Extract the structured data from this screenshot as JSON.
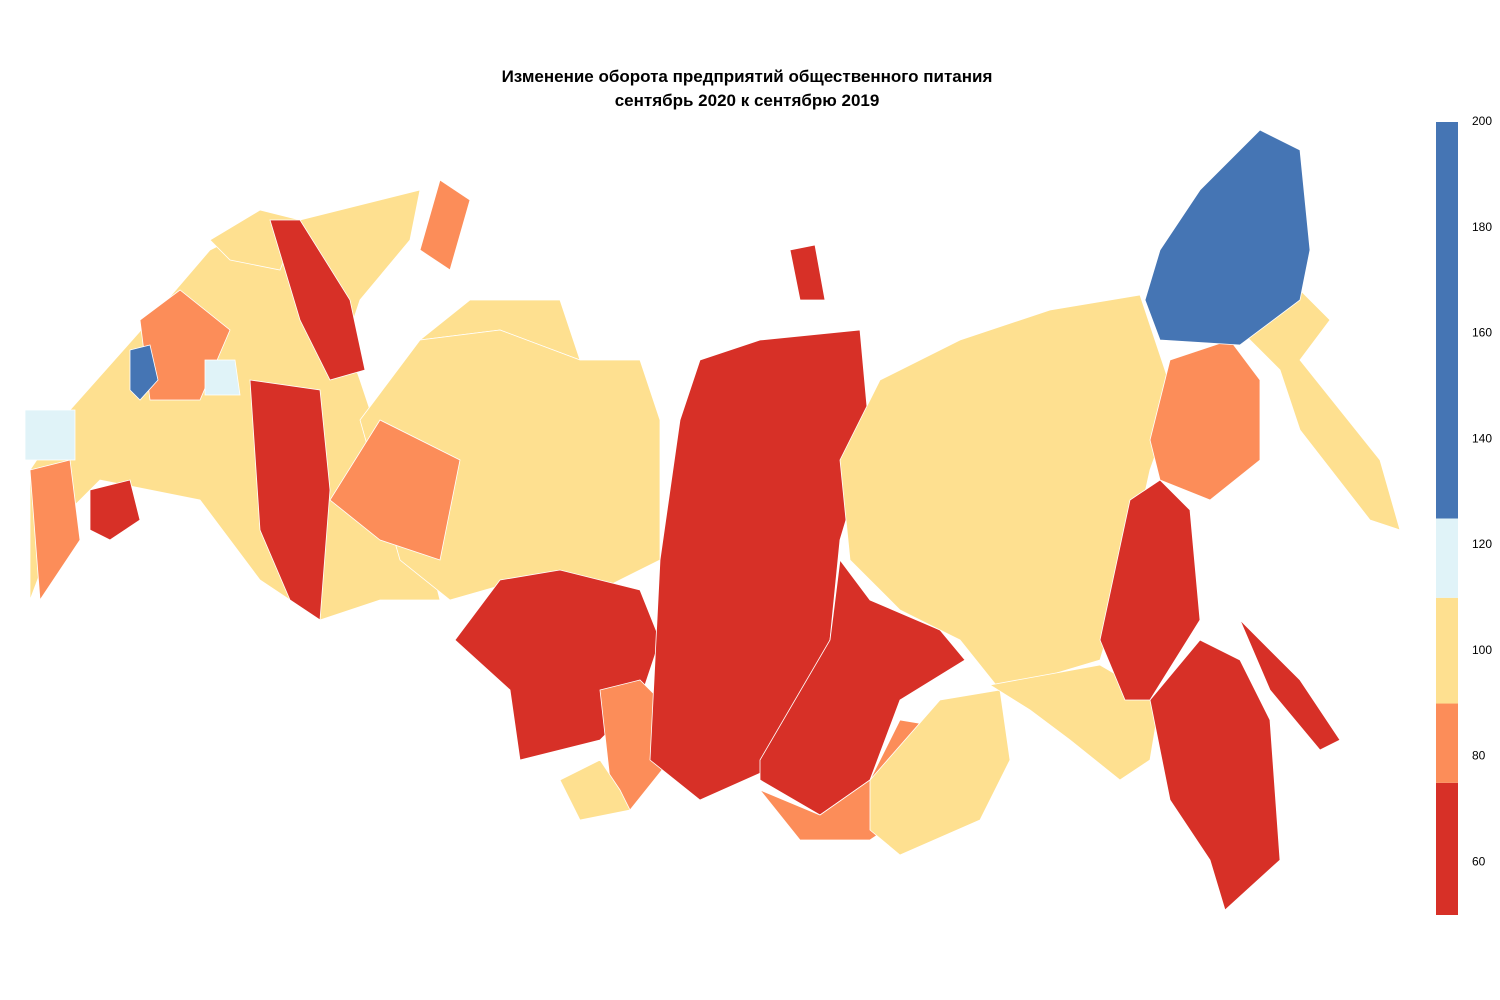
{
  "header": {
    "title": [
      "Изменение оборота предприятий общественного питания",
      "сентябрь 2020 к сентябрю 2019"
    ]
  },
  "legend": {
    "lim": [
      50,
      200
    ],
    "ticks": [
      60,
      80,
      100,
      120,
      140,
      160,
      180,
      200
    ],
    "bands": [
      {
        "from": 50,
        "to": 75,
        "color": "#d73027"
      },
      {
        "from": 75,
        "to": 90,
        "color": "#fc8d59"
      },
      {
        "from": 90,
        "to": 110,
        "color": "#fee090"
      },
      {
        "from": 110,
        "to": 125,
        "color": "#e0f3f8"
      },
      {
        "from": 125,
        "to": 200,
        "color": "#4575b4"
      }
    ]
  }
}
